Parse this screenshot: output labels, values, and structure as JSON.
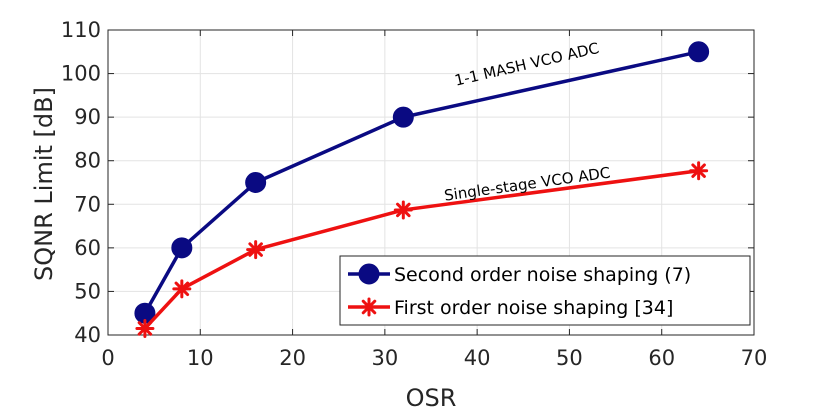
{
  "chart_data": {
    "type": "line",
    "title": "",
    "xlabel": "OSR",
    "ylabel": "SQNR Limit [dB]",
    "xlim": [
      0,
      70
    ],
    "ylim": [
      40,
      110
    ],
    "xticks": [
      0,
      10,
      20,
      30,
      40,
      50,
      60,
      70
    ],
    "yticks": [
      40,
      50,
      60,
      70,
      80,
      90,
      100,
      110
    ],
    "grid": true,
    "legend_position": "bottom-right",
    "series": [
      {
        "name": "Second order noise shaping (7)",
        "color": "#0a0a82",
        "marker": "circle",
        "x": [
          4,
          8,
          16,
          32,
          64
        ],
        "y": [
          45,
          60,
          75,
          90,
          105
        ]
      },
      {
        "name": "First order noise shaping [34]",
        "color": "#ee1111",
        "marker": "asterisk",
        "x": [
          4,
          8,
          16,
          32,
          64
        ],
        "y": [
          41.5,
          50.6,
          59.6,
          68.7,
          77.7
        ]
      }
    ],
    "annotations": [
      {
        "text": "1-1 MASH VCO ADC",
        "x": 45.5,
        "y": 101,
        "rotation": -13
      },
      {
        "text": "Single-stage VCO ADC",
        "x": 45.5,
        "y": 73.5,
        "rotation": -8
      }
    ]
  }
}
